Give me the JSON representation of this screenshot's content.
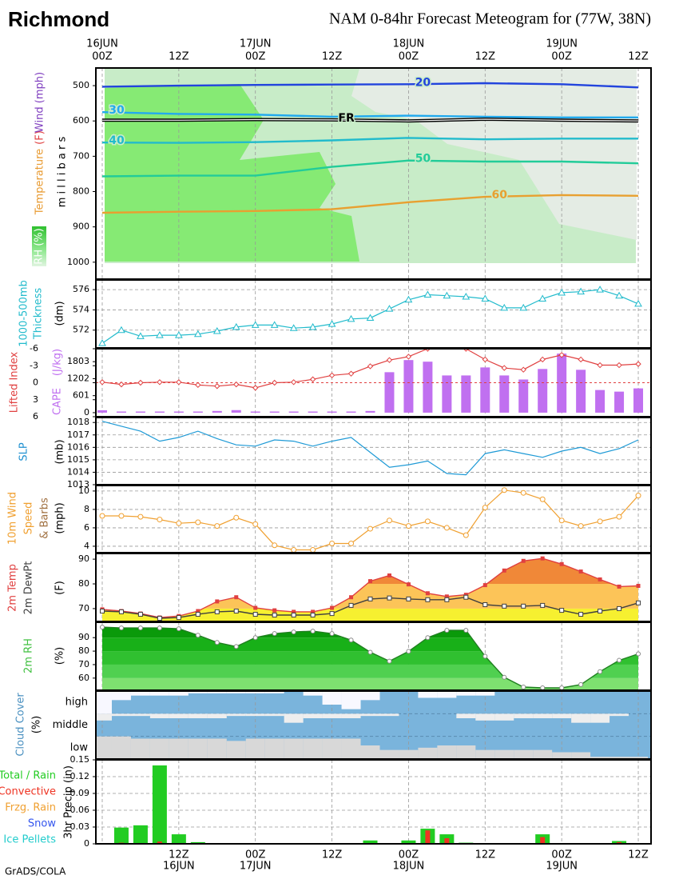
{
  "header": {
    "station": "Richmond",
    "title": "NAM 0-84hr Forecast Meteogram for (77W, 38N)"
  },
  "footer": "GrADS/COLA",
  "x_axis": {
    "xlim": [
      -1,
      86
    ],
    "xticks": [
      {
        "value": 0,
        "label": "00Z"
      },
      {
        "value": 12,
        "label": "12Z"
      },
      {
        "value": 24,
        "label": "00Z"
      },
      {
        "value": 36,
        "label": "12Z"
      },
      {
        "value": 48,
        "label": "00Z"
      },
      {
        "value": 60,
        "label": "12Z"
      },
      {
        "value": 72,
        "label": "00Z"
      },
      {
        "value": 84,
        "label": "12Z"
      }
    ],
    "top_dates": [
      {
        "value": 0,
        "label": "16JUN"
      },
      {
        "value": 24,
        "label": "17JUN"
      },
      {
        "value": 48,
        "label": "18JUN"
      },
      {
        "value": 72,
        "label": "19JUN"
      }
    ],
    "bottom_ticks": [
      {
        "value": 12,
        "label": "12Z"
      },
      {
        "value": 24,
        "label": "00Z"
      },
      {
        "value": 36,
        "label": "12Z"
      },
      {
        "value": 48,
        "label": "00Z"
      },
      {
        "value": 60,
        "label": "12Z"
      },
      {
        "value": 72,
        "label": "00Z"
      },
      {
        "value": 84,
        "label": "12Z"
      }
    ],
    "bottom_dates": [
      {
        "value": 12,
        "label": "16JUN"
      },
      {
        "value": 24,
        "label": "17JUN"
      },
      {
        "value": 48,
        "label": "18JUN"
      },
      {
        "value": 72,
        "label": "19JUN"
      }
    ]
  },
  "chart_data": [
    {
      "type": "contour",
      "labels": [
        {
          "text": "Temperature",
          "color": "#e89a30"
        },
        {
          "text": "(F)",
          "color": "#e04040"
        },
        {
          "text": "Wind (mph)",
          "color": "#8040c0"
        },
        {
          "text": "m i l l i b a r s",
          "color": "#000000"
        },
        {
          "text": "RH (%)",
          "color": "#ffffff"
        }
      ],
      "x": [
        0,
        12,
        24,
        36,
        48,
        60,
        72,
        84
      ],
      "series": [
        {
          "name": "20",
          "color": "#2244dd",
          "values": [
            503,
            500,
            498,
            497,
            496,
            493,
            496,
            505
          ]
        },
        {
          "name": "30",
          "color": "#22aaee",
          "values": [
            575,
            580,
            582,
            588,
            585,
            588,
            590,
            590
          ]
        },
        {
          "name": "FR",
          "color": "#000000",
          "values": [
            598,
            598,
            596,
            597,
            600,
            595,
            598,
            600
          ]
        },
        {
          "name": "40",
          "color": "#22bbcc",
          "values": [
            661,
            662,
            660,
            655,
            648,
            652,
            650,
            650
          ]
        },
        {
          "name": "50",
          "color": "#22cc99",
          "values": [
            757,
            755,
            755,
            730,
            712,
            715,
            715,
            720
          ]
        },
        {
          "name": "60",
          "color": "#e8a030",
          "values": [
            860,
            857,
            855,
            850,
            830,
            815,
            810,
            812
          ]
        }
      ],
      "ylim": [
        1048,
        450
      ],
      "yticks": [
        500,
        600,
        700,
        800,
        900,
        1000
      ]
    },
    {
      "type": "line",
      "labels": [
        {
          "text": "1000-500mb",
          "color": "#22bbcc"
        },
        {
          "text": "Thickness",
          "color": "#22bbcc"
        },
        {
          "text": "(dm)",
          "color": "#000000"
        }
      ],
      "x": [
        0,
        3,
        6,
        9,
        12,
        15,
        18,
        21,
        24,
        27,
        30,
        33,
        36,
        39,
        42,
        45,
        48,
        51,
        54,
        57,
        60,
        63,
        66,
        69,
        72,
        75,
        78,
        81,
        84
      ],
      "series": [
        {
          "color": "#22bbcc",
          "marker": "triangle",
          "values": [
            570.7,
            572,
            571.4,
            571.5,
            571.5,
            571.6,
            571.9,
            572.3,
            572.5,
            572.5,
            572.2,
            572.3,
            572.6,
            573.1,
            573.2,
            574.1,
            575,
            575.5,
            575.4,
            575.3,
            575.1,
            574.2,
            574.2,
            575.1,
            575.7,
            575.8,
            576,
            575.4,
            574.6
          ]
        }
      ],
      "ylim": [
        570.24,
        576.96
      ],
      "yticks": [
        572,
        574,
        576
      ],
      "grid": true
    },
    {
      "type": "bar_line",
      "labels": [
        {
          "text": "Lifted Index",
          "color": "#e04040"
        },
        {
          "text": "CAPE",
          "color": "#c070f0"
        },
        {
          "text": "(J/kg)",
          "color": "#c070f0"
        }
      ],
      "x": [
        0,
        3,
        6,
        9,
        12,
        15,
        18,
        21,
        24,
        27,
        30,
        33,
        36,
        39,
        42,
        45,
        48,
        51,
        54,
        57,
        60,
        63,
        66,
        69,
        72,
        75,
        78,
        81,
        84
      ],
      "series": [
        {
          "color": "#e04040",
          "marker": "diamond",
          "values": [
            -0.1,
            0.3,
            0,
            -0.1,
            -0.1,
            0.4,
            0.6,
            0.3,
            0.9,
            0,
            -0.1,
            -0.6,
            -1.3,
            -1.6,
            -2.9,
            -4,
            -4.6,
            -6,
            -6.5,
            -6,
            -4.1,
            -2.6,
            -2.3,
            -4.1,
            -4.9,
            -4.1,
            -3.1,
            -3.1,
            -3.3
          ]
        },
        {
          "color": "#c070f0",
          "axis": "y2",
          "values": [
            86,
            40,
            40,
            40,
            40,
            40,
            60,
            90,
            40,
            40,
            40,
            40,
            40,
            40,
            60,
            1431,
            1860,
            1803,
            1316,
            1316,
            1600,
            1316,
            1173,
            1545,
            2089,
            1516,
            801,
            744,
            858
          ]
        }
      ],
      "ylim": [
        6,
        -6
      ],
      "yticks": [
        -6,
        -3,
        0,
        3,
        6
      ],
      "y2lim": [
        -143,
        2261
      ],
      "y2ticks": [
        0,
        601,
        1202,
        1803
      ],
      "zero_line": true
    },
    {
      "type": "line",
      "labels": [
        {
          "text": "SLP",
          "color": "#1e90d0"
        },
        {
          "text": "(mb)",
          "color": "#000000"
        }
      ],
      "x": [
        0,
        3,
        6,
        9,
        12,
        15,
        18,
        21,
        24,
        27,
        30,
        33,
        36,
        39,
        42,
        45,
        48,
        51,
        54,
        57,
        60,
        63,
        66,
        69,
        72,
        75,
        78,
        81,
        84
      ],
      "series": [
        {
          "color": "#1e9ad6",
          "values": [
            1018.1,
            1017.7,
            1017.3,
            1016.5,
            1016.8,
            1017.3,
            1016.7,
            1016.2,
            1016.1,
            1016.6,
            1016.5,
            1016.1,
            1016.5,
            1016.8,
            1015.6,
            1014.4,
            1014.6,
            1014.9,
            1013.9,
            1013.8,
            1015.5,
            1015.8,
            1015.5,
            1015.2,
            1015.7,
            1016,
            1015.5,
            1015.9,
            1016.6
          ]
        }
      ],
      "ylim": [
        1013,
        1018.4
      ],
      "yticks": [
        1013,
        1014,
        1015,
        1016,
        1017,
        1018
      ],
      "grid": true
    },
    {
      "type": "line",
      "labels": [
        {
          "text": "10m Wind",
          "color": "#f0a030"
        },
        {
          "text": "Speed",
          "color": "#f0a030"
        },
        {
          "text": "& Barbs",
          "color": "#a07040"
        },
        {
          "text": "(mph)",
          "color": "#000000"
        }
      ],
      "x": [
        0,
        3,
        6,
        9,
        12,
        15,
        18,
        21,
        24,
        27,
        30,
        33,
        36,
        39,
        42,
        45,
        48,
        51,
        54,
        57,
        60,
        63,
        66,
        69,
        72,
        75,
        78,
        81,
        84
      ],
      "series": [
        {
          "color": "#f0a030",
          "marker": "circle",
          "values": [
            7.3,
            7.3,
            7.2,
            6.9,
            6.5,
            6.6,
            6.2,
            7.1,
            6.4,
            4.1,
            3.6,
            3.6,
            4.3,
            4.3,
            5.9,
            6.8,
            6.2,
            6.7,
            6,
            5.2,
            8.2,
            10.1,
            9.8,
            9.1,
            6.8,
            6.2,
            6.7,
            7.2,
            9.5
          ]
        }
      ],
      "ylim": [
        3.3,
        10.6
      ],
      "yticks": [
        4,
        6,
        8,
        10
      ],
      "grid": true
    },
    {
      "type": "area_bands",
      "labels": [
        {
          "text": "2m Temp",
          "color": "#e04040"
        },
        {
          "text": "2m DewPt",
          "color": "#404040"
        },
        {
          "text": "(F)",
          "color": "#000000"
        }
      ],
      "x": [
        0,
        3,
        6,
        9,
        12,
        15,
        18,
        21,
        24,
        27,
        30,
        33,
        36,
        39,
        42,
        45,
        48,
        51,
        54,
        57,
        60,
        63,
        66,
        69,
        72,
        75,
        78,
        81,
        84
      ],
      "series": [
        {
          "color": "#e04040",
          "marker": "square",
          "values": [
            69.7,
            69,
            68,
            66.4,
            67,
            69,
            72.9,
            74.6,
            70.3,
            69.3,
            68.7,
            68.7,
            70.3,
            74.6,
            81.1,
            83.4,
            79.8,
            76.2,
            74.9,
            75.6,
            79.5,
            85.4,
            89.3,
            90.3,
            88,
            85,
            81.8,
            78.9,
            79.2
          ]
        },
        {
          "color": "#404040",
          "marker": "square_open",
          "values": [
            69,
            68.7,
            67.7,
            66.1,
            66.4,
            67.7,
            68.7,
            69,
            67.7,
            67.4,
            67.4,
            67.4,
            68,
            71.3,
            73.9,
            74.3,
            73.9,
            73.6,
            73.6,
            74.6,
            71.6,
            71,
            71,
            71.3,
            69.3,
            67.7,
            69,
            70,
            72.3
          ]
        }
      ],
      "band_colors": [
        "#f6f030",
        "#fcc458",
        "#f08838",
        "#e06820"
      ],
      "ylim": [
        64.8,
        92.3
      ],
      "yticks": [
        70,
        80,
        90
      ]
    },
    {
      "type": "area_bands",
      "labels": [
        {
          "text": "2m RH",
          "color": "#40c040"
        },
        {
          "text": "(%)",
          "color": "#000000"
        }
      ],
      "x": [
        0,
        3,
        6,
        9,
        12,
        15,
        18,
        21,
        24,
        27,
        30,
        33,
        36,
        39,
        42,
        45,
        48,
        51,
        54,
        57,
        60,
        63,
        66,
        69,
        72,
        75,
        78,
        81,
        84
      ],
      "series": [
        {
          "color": "#208020",
          "marker": "circle_open",
          "values": [
            97.8,
            97.2,
            97.2,
            97.2,
            96.6,
            91.8,
            86.4,
            83.4,
            90,
            93,
            94.2,
            94.8,
            93,
            88.2,
            79.2,
            72.6,
            79.8,
            90,
            95.4,
            95.4,
            76.2,
            60.6,
            53.4,
            52.8,
            52.8,
            55.2,
            64.8,
            73.2,
            78
          ]
        }
      ],
      "band_colors": [
        "#7ee070",
        "#50d050",
        "#30c030",
        "#18b018",
        "#0a9a0a"
      ],
      "ylim": [
        51,
        101.4
      ],
      "yticks": [
        60,
        70,
        80,
        90
      ]
    },
    {
      "type": "cloud",
      "labels": [
        {
          "text": "Cloud Cover",
          "color": "#4a90c0"
        },
        {
          "text": "(%)",
          "color": "#000000"
        }
      ],
      "levels": [
        "high",
        "middle",
        "low"
      ],
      "background": "#7ab4dc",
      "x": [
        0,
        3,
        6,
        9,
        12,
        15,
        18,
        21,
        24,
        27,
        30,
        33,
        36,
        39,
        42,
        45,
        48,
        51,
        54,
        57,
        60,
        63,
        66,
        69,
        72,
        75,
        78,
        81,
        84
      ],
      "series": [
        {
          "color": "#f8f8ff",
          "values": [
            100,
            40,
            20,
            20,
            20,
            10,
            10,
            10,
            10,
            10,
            0,
            20,
            60,
            80,
            40,
            0,
            0,
            30,
            30,
            20,
            20,
            0,
            0,
            0,
            0,
            0,
            0,
            0,
            0
          ]
        },
        {
          "color": "#eeeeee",
          "values": [
            30,
            10,
            10,
            20,
            20,
            20,
            20,
            10,
            10,
            10,
            40,
            20,
            20,
            20,
            10,
            10,
            0,
            0,
            0,
            20,
            30,
            30,
            20,
            20,
            20,
            40,
            40,
            10,
            0
          ]
        },
        {
          "color": "#d8d8d8",
          "values": [
            100,
            100,
            90,
            90,
            90,
            90,
            90,
            80,
            90,
            90,
            90,
            90,
            90,
            90,
            60,
            40,
            40,
            50,
            60,
            60,
            40,
            40,
            40,
            40,
            30,
            30,
            10,
            10,
            10
          ]
        }
      ],
      "ylim": [
        0,
        100
      ]
    },
    {
      "type": "bar",
      "legend": [
        {
          "text": "Total / Rain",
          "color": "#22cc22"
        },
        {
          "text": "Convective",
          "color": "#ee3322"
        },
        {
          "text": "Frzg. Rain",
          "color": "#f0a030"
        },
        {
          "text": "Snow",
          "color": "#3355ee"
        },
        {
          "text": "Ice Pellets",
          "color": "#22cccc"
        }
      ],
      "labels": [
        {
          "text": "3hr Precip (in)",
          "color": "#000000"
        }
      ],
      "x": [
        3,
        6,
        9,
        12,
        15,
        18,
        21,
        24,
        27,
        30,
        33,
        36,
        39,
        42,
        45,
        48,
        51,
        54,
        57,
        60,
        63,
        66,
        69,
        72,
        75,
        78,
        81,
        84
      ],
      "series": [
        {
          "color": "#22cc22",
          "values": [
            0.029,
            0.033,
            0.14,
            0.017,
            0.003,
            0,
            0,
            0,
            0,
            0,
            0,
            0.001,
            0.001,
            0.006,
            0.001,
            0.006,
            0.027,
            0.017,
            0.002,
            0,
            0,
            0,
            0.017,
            0,
            0,
            0,
            0.005,
            0
          ]
        },
        {
          "color": "#ee3322",
          "values": [
            0.002,
            0.001,
            0.004,
            0,
            0,
            0,
            0,
            0,
            0,
            0,
            0,
            0,
            0,
            0,
            0,
            0,
            0.024,
            0.01,
            0,
            0,
            0,
            0,
            0.012,
            0,
            0,
            0,
            0.003,
            0
          ]
        }
      ],
      "ylim": [
        0,
        0.15
      ],
      "yticks": [
        0,
        0.03,
        0.06,
        0.09,
        0.12,
        0.15
      ],
      "grid": true
    }
  ]
}
